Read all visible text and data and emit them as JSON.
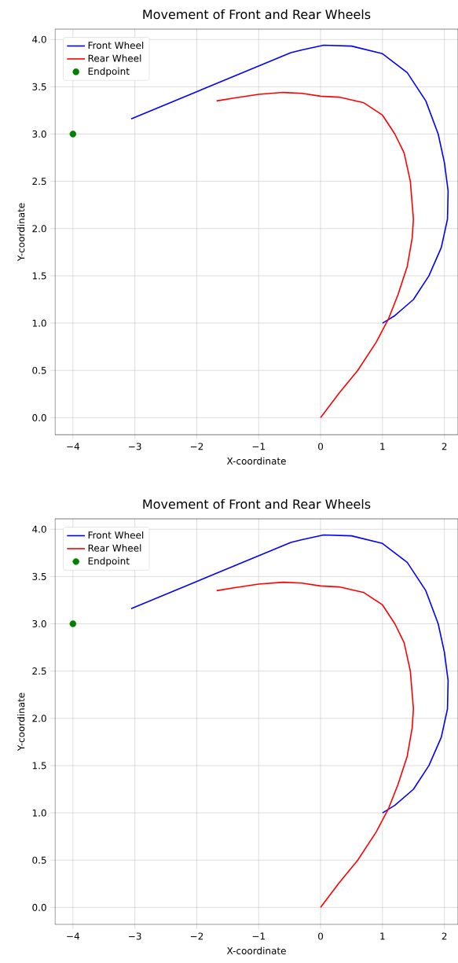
{
  "chart_data": [
    {
      "type": "line",
      "title": "Movement of Front and Rear Wheels",
      "xlabel": "X-coordinate",
      "ylabel": "Y-coordinate",
      "xlim": [
        -4.29,
        2.22
      ],
      "ylim": [
        -0.18,
        4.11
      ],
      "xticks": [
        {
          "value": -4,
          "label": "−4"
        },
        {
          "value": -3,
          "label": "−3"
        },
        {
          "value": -2,
          "label": "−2"
        },
        {
          "value": -1,
          "label": "−1"
        },
        0,
        1,
        2
      ],
      "yticks": [
        {
          "value": 0,
          "label": "0.0"
        },
        {
          "value": 0.5,
          "label": "0.5"
        },
        {
          "value": 1,
          "label": "1.0"
        },
        {
          "value": 1.5,
          "label": "1.5"
        },
        {
          "value": 2,
          "label": "2.0"
        },
        {
          "value": 2.5,
          "label": "2.5"
        },
        {
          "value": 3,
          "label": "3.0"
        },
        {
          "value": 3.5,
          "label": "3.5"
        },
        {
          "value": 4,
          "label": "4.0"
        }
      ],
      "grid": true,
      "legend": "top left",
      "series": [
        {
          "name": "Front Wheel",
          "color": "#0000ff",
          "x": [
            1,
            1.2,
            1.5,
            1.75,
            1.95,
            2.05,
            2.06,
            2.0,
            1.9,
            1.7,
            1.4,
            1.0,
            0.5,
            0.05,
            -0.3,
            -0.48,
            -3.06
          ],
          "values": [
            1,
            1.08,
            1.25,
            1.5,
            1.8,
            2.1,
            2.4,
            2.7,
            3.0,
            3.35,
            3.65,
            3.85,
            3.93,
            3.94,
            3.89,
            3.86,
            3.16
          ]
        },
        {
          "name": "Rear Wheel",
          "color": "#ff0000",
          "x": [
            0,
            0.3,
            0.6,
            0.9,
            1.1,
            1.25,
            1.4,
            1.48,
            1.5,
            1.45,
            1.35,
            1.2,
            1.0,
            0.7,
            0.3,
            0,
            -0.3,
            -0.6,
            -1.0,
            -1.4,
            -1.68
          ],
          "values": [
            0,
            0.26,
            0.5,
            0.8,
            1.05,
            1.3,
            1.6,
            1.9,
            2.1,
            2.5,
            2.8,
            3.0,
            3.2,
            3.33,
            3.39,
            3.4,
            3.43,
            3.44,
            3.42,
            3.38,
            3.35
          ]
        },
        {
          "name": "Endpoint",
          "color": "#008000",
          "type": "scatter",
          "x": [
            -4
          ],
          "values": [
            3
          ]
        }
      ]
    },
    {
      "type": "line",
      "title": "Movement of Front and Rear Wheels",
      "xlabel": "X-coordinate",
      "ylabel": "Y-coordinate",
      "xlim": [
        -4.29,
        2.22
      ],
      "ylim": [
        -0.18,
        4.11
      ],
      "xticks": [
        {
          "value": -4,
          "label": "−4"
        },
        {
          "value": -3,
          "label": "−3"
        },
        {
          "value": -2,
          "label": "−2"
        },
        {
          "value": -1,
          "label": "−1"
        },
        0,
        1,
        2
      ],
      "yticks": [
        {
          "value": 0,
          "label": "0.0"
        },
        {
          "value": 0.5,
          "label": "0.5"
        },
        {
          "value": 1,
          "label": "1.0"
        },
        {
          "value": 1.5,
          "label": "1.5"
        },
        {
          "value": 2,
          "label": "2.0"
        },
        {
          "value": 2.5,
          "label": "2.5"
        },
        {
          "value": 3,
          "label": "3.0"
        },
        {
          "value": 3.5,
          "label": "3.5"
        },
        {
          "value": 4,
          "label": "4.0"
        }
      ],
      "grid": true,
      "legend": "top left",
      "series": [
        {
          "name": "Front Wheel",
          "color": "#0000ff",
          "x": [
            1,
            1.2,
            1.5,
            1.75,
            1.95,
            2.05,
            2.06,
            2.0,
            1.9,
            1.7,
            1.4,
            1.0,
            0.5,
            0.05,
            -0.3,
            -0.48,
            -3.06
          ],
          "values": [
            1,
            1.08,
            1.25,
            1.5,
            1.8,
            2.1,
            2.4,
            2.7,
            3.0,
            3.35,
            3.65,
            3.85,
            3.93,
            3.94,
            3.89,
            3.86,
            3.16
          ]
        },
        {
          "name": "Rear Wheel",
          "color": "#ff0000",
          "x": [
            0,
            0.3,
            0.6,
            0.9,
            1.1,
            1.25,
            1.4,
            1.48,
            1.5,
            1.45,
            1.35,
            1.2,
            1.0,
            0.7,
            0.3,
            0,
            -0.3,
            -0.6,
            -1.0,
            -1.4,
            -1.68
          ],
          "values": [
            0,
            0.26,
            0.5,
            0.8,
            1.05,
            1.3,
            1.6,
            1.9,
            2.1,
            2.5,
            2.8,
            3.0,
            3.2,
            3.33,
            3.39,
            3.4,
            3.43,
            3.44,
            3.42,
            3.38,
            3.35
          ]
        },
        {
          "name": "Endpoint",
          "color": "#008000",
          "type": "scatter",
          "x": [
            -4
          ],
          "values": [
            3
          ]
        }
      ]
    }
  ]
}
